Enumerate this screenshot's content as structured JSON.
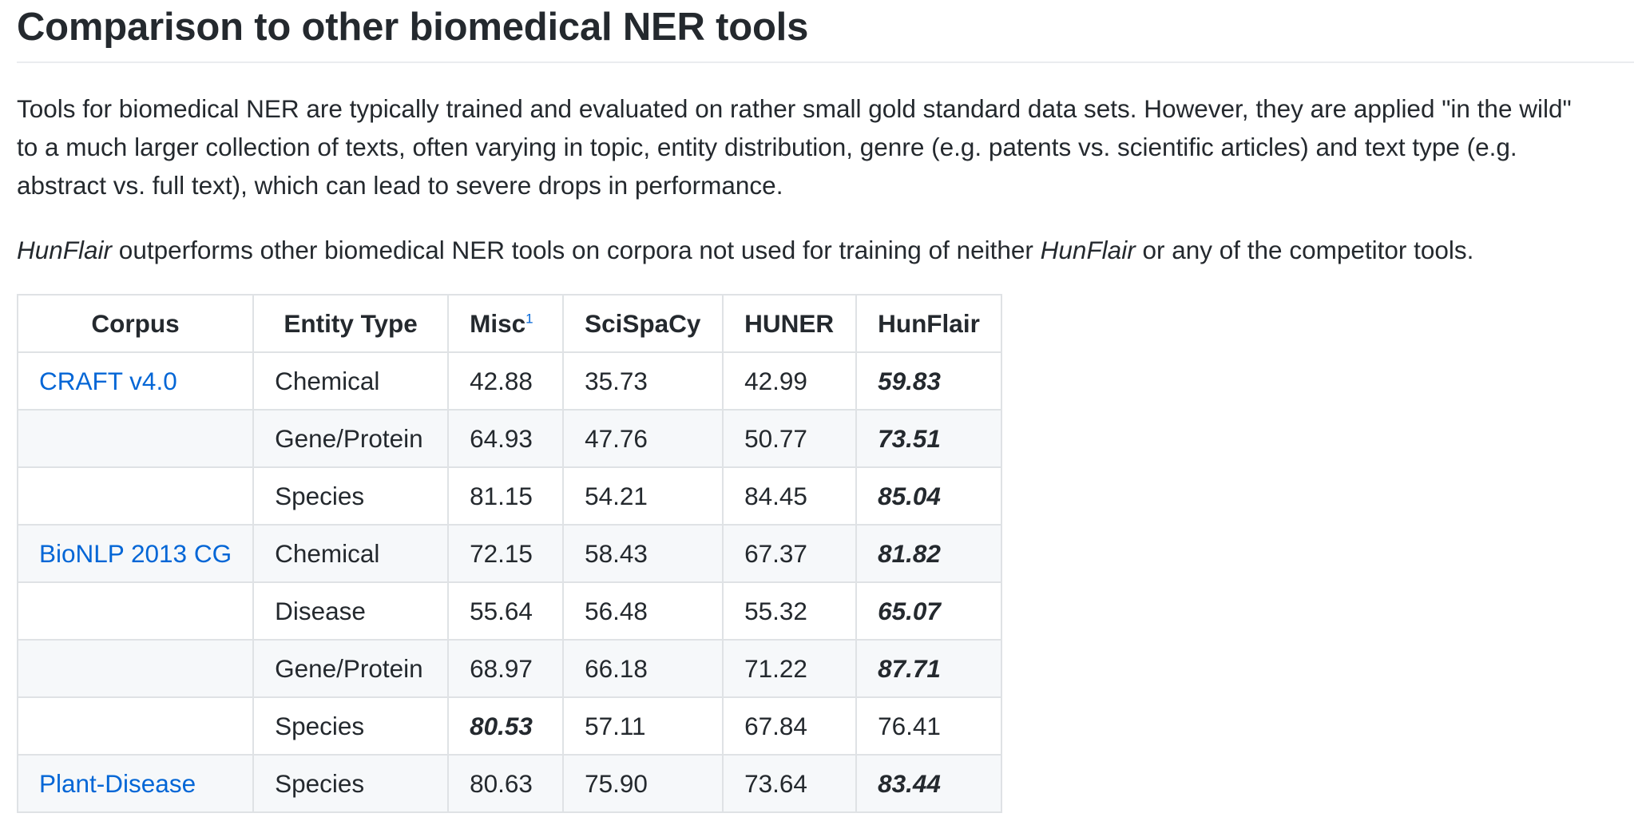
{
  "heading": "Comparison to other biomedical NER tools",
  "intro": {
    "lines": [
      "Tools for biomedical NER are typically trained and evaluated on rather small gold standard data sets. However, they are applied \"in the wild\"",
      "to a much larger collection of texts, often varying in topic, entity distribution, genre (e.g. patents vs. scientific articles) and text type (e.g.",
      "abstract vs. full text), which can lead to severe drops in performance."
    ]
  },
  "claim": {
    "name1": "HunFlair",
    "middle": " outperforms other biomedical NER tools on corpora not used for training of neither ",
    "name2": "HunFlair",
    "end": " or any of the competitor tools."
  },
  "table": {
    "headers": {
      "corpus": "Corpus",
      "entity_type": "Entity Type",
      "misc": "Misc",
      "misc_footnote": "1",
      "scispacy": "SciSpaCy",
      "huner": "HUNER",
      "hunflair": "HunFlair"
    },
    "rows": [
      {
        "corpus": "CRAFT v4.0",
        "entity": "Chemical",
        "misc": "42.88",
        "scispacy": "35.73",
        "huner": "42.99",
        "hunflair": "59.83",
        "best": "hunflair"
      },
      {
        "corpus": "",
        "entity": "Gene/Protein",
        "misc": "64.93",
        "scispacy": "47.76",
        "huner": "50.77",
        "hunflair": "73.51",
        "best": "hunflair"
      },
      {
        "corpus": "",
        "entity": "Species",
        "misc": "81.15",
        "scispacy": "54.21",
        "huner": "84.45",
        "hunflair": "85.04",
        "best": "hunflair"
      },
      {
        "corpus": "BioNLP 2013 CG",
        "entity": "Chemical",
        "misc": "72.15",
        "scispacy": "58.43",
        "huner": "67.37",
        "hunflair": "81.82",
        "best": "hunflair"
      },
      {
        "corpus": "",
        "entity": "Disease",
        "misc": "55.64",
        "scispacy": "56.48",
        "huner": "55.32",
        "hunflair": "65.07",
        "best": "hunflair"
      },
      {
        "corpus": "",
        "entity": "Gene/Protein",
        "misc": "68.97",
        "scispacy": "66.18",
        "huner": "71.22",
        "hunflair": "87.71",
        "best": "hunflair"
      },
      {
        "corpus": "",
        "entity": "Species",
        "misc": "80.53",
        "scispacy": "57.11",
        "huner": "67.84",
        "hunflair": "76.41",
        "best": "misc"
      },
      {
        "corpus": "Plant-Disease",
        "entity": "Species",
        "misc": "80.63",
        "scispacy": "75.90",
        "huner": "73.64",
        "hunflair": "83.44",
        "best": "hunflair"
      }
    ]
  },
  "colors": {
    "link": "#0366d6",
    "text": "#24292e",
    "border": "#dfe2e5",
    "stripe": "#f6f8fa"
  }
}
